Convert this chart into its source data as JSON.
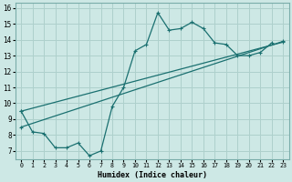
{
  "xlabel": "Humidex (Indice chaleur)",
  "xlim": [
    -0.5,
    23.5
  ],
  "ylim": [
    6.5,
    16.3
  ],
  "yticks": [
    7,
    8,
    9,
    10,
    11,
    12,
    13,
    14,
    15,
    16
  ],
  "xticks": [
    0,
    1,
    2,
    3,
    4,
    5,
    6,
    7,
    8,
    9,
    10,
    11,
    12,
    13,
    14,
    15,
    16,
    17,
    18,
    19,
    20,
    21,
    22,
    23
  ],
  "bg_color": "#cde8e5",
  "grid_color": "#aed0cc",
  "line_color": "#1a7070",
  "line1_x": [
    0,
    1,
    2,
    3,
    4,
    5,
    6,
    7,
    8,
    9,
    10,
    11,
    12,
    13,
    14,
    15,
    16,
    17,
    18,
    19,
    20,
    21,
    22
  ],
  "line1_y": [
    9.5,
    8.2,
    8.1,
    7.2,
    7.2,
    7.5,
    6.7,
    7.0,
    9.8,
    11.0,
    13.3,
    13.7,
    15.7,
    14.6,
    14.7,
    15.1,
    14.7,
    13.8,
    13.7,
    13.0,
    13.0,
    13.2,
    13.8
  ],
  "line2_x": [
    0,
    23
  ],
  "line2_y": [
    8.5,
    13.9
  ],
  "line3_x": [
    0,
    23
  ],
  "line3_y": [
    9.5,
    13.85
  ]
}
